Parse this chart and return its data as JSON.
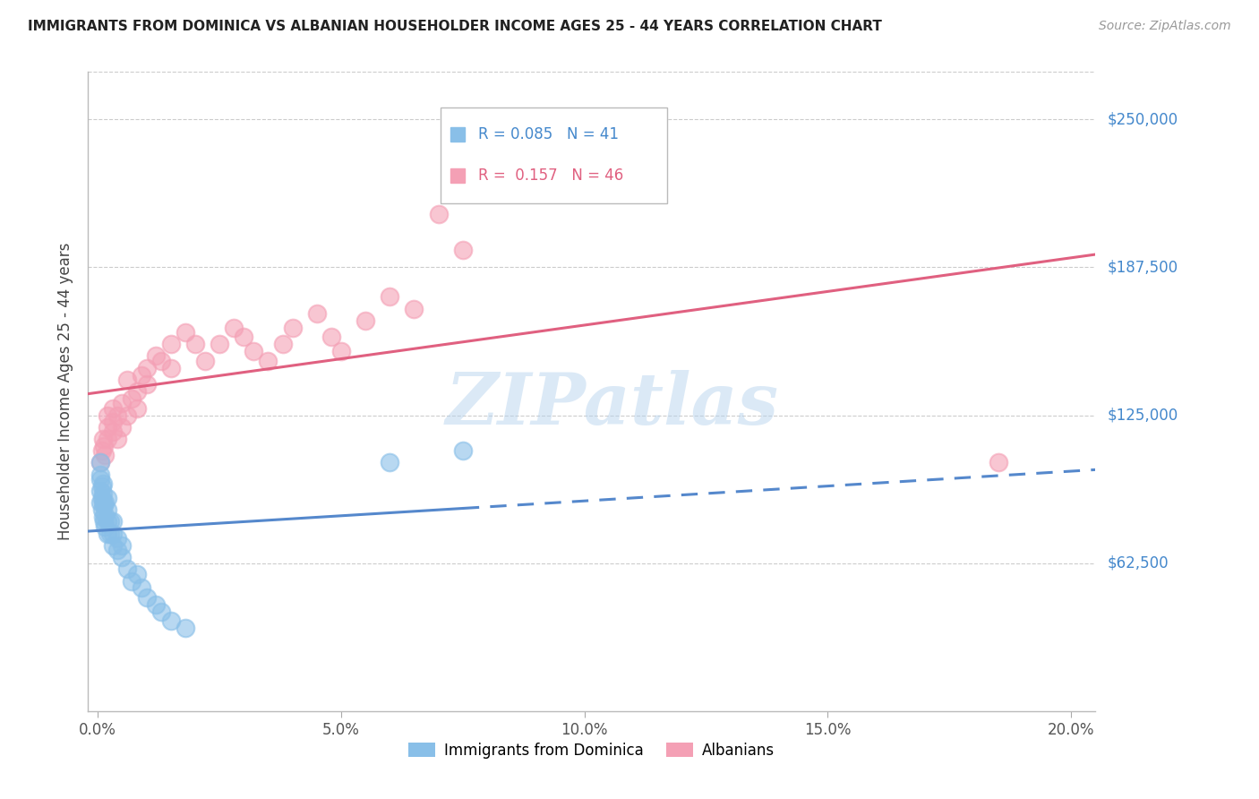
{
  "title": "IMMIGRANTS FROM DOMINICA VS ALBANIAN HOUSEHOLDER INCOME AGES 25 - 44 YEARS CORRELATION CHART",
  "source": "Source: ZipAtlas.com",
  "ylabel": "Householder Income Ages 25 - 44 years",
  "xlabel_ticks": [
    "0.0%",
    "5.0%",
    "10.0%",
    "15.0%",
    "20.0%"
  ],
  "xlabel_vals": [
    0.0,
    0.05,
    0.1,
    0.15,
    0.2
  ],
  "ytick_labels": [
    "$62,500",
    "$125,000",
    "$187,500",
    "$250,000"
  ],
  "ytick_vals": [
    62500,
    125000,
    187500,
    250000
  ],
  "ymin": 0,
  "ymax": 270000,
  "xmin": -0.002,
  "xmax": 0.205,
  "dominica_R": 0.085,
  "dominica_N": 41,
  "albanian_R": 0.157,
  "albanian_N": 46,
  "dominica_color": "#89bfe8",
  "albanian_color": "#f4a0b5",
  "dominica_line_color": "#5588cc",
  "albanian_line_color": "#e06080",
  "legend_label_1": "Immigrants from Dominica",
  "legend_label_2": "Albanians",
  "watermark": "ZIPatlas",
  "dominica_x": [
    0.0005,
    0.0005,
    0.0005,
    0.0005,
    0.0005,
    0.0008,
    0.0008,
    0.0008,
    0.001,
    0.001,
    0.001,
    0.001,
    0.0012,
    0.0012,
    0.0015,
    0.0015,
    0.0015,
    0.002,
    0.002,
    0.002,
    0.002,
    0.0025,
    0.0025,
    0.003,
    0.003,
    0.003,
    0.004,
    0.004,
    0.005,
    0.005,
    0.006,
    0.007,
    0.008,
    0.009,
    0.01,
    0.012,
    0.013,
    0.015,
    0.018,
    0.06,
    0.075
  ],
  "dominica_y": [
    88000,
    93000,
    98000,
    100000,
    105000,
    85000,
    90000,
    95000,
    82000,
    88000,
    92000,
    96000,
    80000,
    87000,
    78000,
    83000,
    88000,
    75000,
    80000,
    85000,
    90000,
    75000,
    80000,
    70000,
    75000,
    80000,
    68000,
    73000,
    65000,
    70000,
    60000,
    55000,
    58000,
    52000,
    48000,
    45000,
    42000,
    38000,
    35000,
    105000,
    110000
  ],
  "albanian_x": [
    0.0005,
    0.0008,
    0.001,
    0.0012,
    0.0015,
    0.002,
    0.002,
    0.002,
    0.003,
    0.003,
    0.003,
    0.004,
    0.004,
    0.005,
    0.005,
    0.006,
    0.006,
    0.007,
    0.008,
    0.008,
    0.009,
    0.01,
    0.01,
    0.012,
    0.013,
    0.015,
    0.015,
    0.018,
    0.02,
    0.022,
    0.025,
    0.028,
    0.03,
    0.032,
    0.035,
    0.038,
    0.04,
    0.045,
    0.048,
    0.05,
    0.055,
    0.06,
    0.065,
    0.07,
    0.075,
    0.185
  ],
  "albanian_y": [
    105000,
    110000,
    115000,
    112000,
    108000,
    115000,
    120000,
    125000,
    118000,
    122000,
    128000,
    115000,
    125000,
    130000,
    120000,
    125000,
    140000,
    132000,
    128000,
    135000,
    142000,
    138000,
    145000,
    150000,
    148000,
    155000,
    145000,
    160000,
    155000,
    148000,
    155000,
    162000,
    158000,
    152000,
    148000,
    155000,
    162000,
    168000,
    158000,
    152000,
    165000,
    175000,
    170000,
    210000,
    195000,
    105000
  ]
}
